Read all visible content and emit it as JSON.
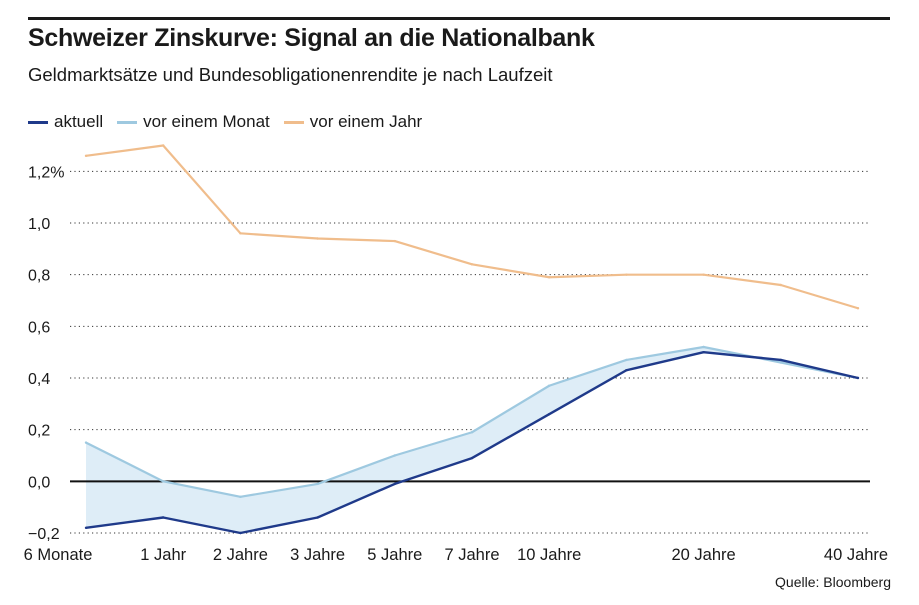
{
  "header": {
    "title": "Schweizer Zinskurve: Signal an die Nationalbank",
    "subtitle": "Geldmarktsätze und Bundesobligationenrendite je nach Laufzeit"
  },
  "source": "Quelle: Bloomberg",
  "chart_data": {
    "type": "line",
    "categories": [
      "6 Monate",
      "1 Jahr",
      "2 Jahre",
      "3 Jahre",
      "5 Jahre",
      "7 Jahre",
      "10 Jahre",
      "",
      "20 Jahre",
      "",
      "40 Jahre"
    ],
    "series": [
      {
        "name": "aktuell",
        "color": "#1f3a8a",
        "values": [
          -0.18,
          -0.14,
          -0.2,
          -0.14,
          -0.01,
          0.09,
          0.26,
          0.43,
          0.5,
          0.47,
          0.4
        ]
      },
      {
        "name": "vor einem Monat",
        "color": "#9ec9e0",
        "values": [
          0.15,
          0.0,
          -0.06,
          -0.01,
          0.1,
          0.19,
          0.37,
          0.47,
          0.52,
          0.46,
          0.4
        ]
      },
      {
        "name": "vor einem Jahr",
        "color": "#f0bd8c",
        "values": [
          1.26,
          1.3,
          0.96,
          0.94,
          0.93,
          0.84,
          0.79,
          0.8,
          0.8,
          0.76,
          0.67
        ]
      }
    ],
    "fill_between": [
      "aktuell",
      "vor einem Monat"
    ],
    "fill_color": "#deedf7",
    "y_ticks": [
      {
        "value": -0.2,
        "label": "−0,2"
      },
      {
        "value": 0.0,
        "label": "0,0"
      },
      {
        "value": 0.2,
        "label": "0,2"
      },
      {
        "value": 0.4,
        "label": "0,4"
      },
      {
        "value": 0.6,
        "label": "0,6"
      },
      {
        "value": 0.8,
        "label": "0,8"
      },
      {
        "value": 1.0,
        "label": "1,0"
      },
      {
        "value": 1.2,
        "label": "1,2%"
      }
    ],
    "ylim": [
      -0.2,
      1.3
    ],
    "grid": "dotted horizontal",
    "zero_line": true,
    "legend_position": "top-left"
  }
}
